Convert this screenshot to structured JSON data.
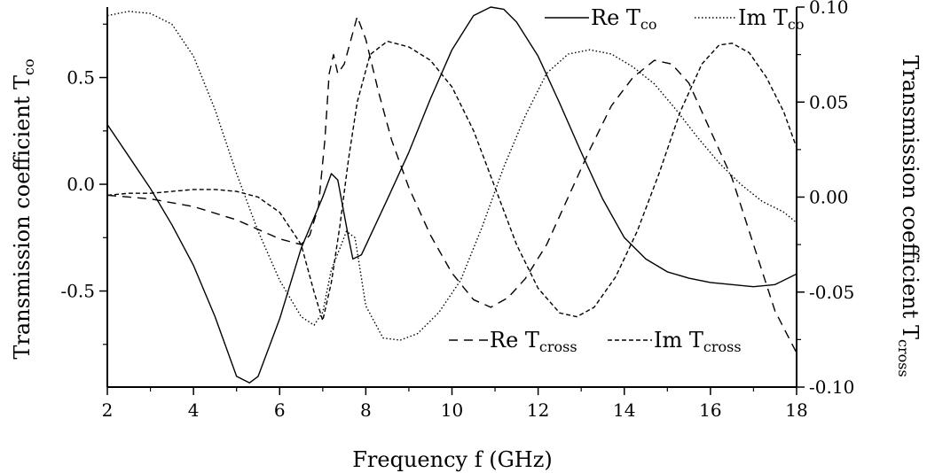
{
  "chart_data": {
    "type": "line",
    "xlabel": "Frequency f (GHz)",
    "ylabel_left_main": "Transmission coefficient T",
    "ylabel_left_sub": "co",
    "ylabel_right_main": "Transmission coefficient T",
    "ylabel_right_sub": "cross",
    "xlim": [
      2,
      18
    ],
    "ylim_left": [
      -0.95,
      0.83
    ],
    "ylim_right": [
      -0.1,
      0.1
    ],
    "x_ticks": [
      "2",
      "4",
      "6",
      "8",
      "10",
      "12",
      "14",
      "16",
      "18"
    ],
    "x_tick_values": [
      2,
      4,
      6,
      8,
      10,
      12,
      14,
      16,
      18
    ],
    "y_left_ticks": [
      "0.5",
      "0.0",
      "-0.5"
    ],
    "y_left_tick_values": [
      0.5,
      0.0,
      -0.5
    ],
    "y_right_ticks": [
      "0.10",
      "0.05",
      "0.00",
      "-0.05",
      "-0.10"
    ],
    "y_right_tick_values": [
      0.1,
      0.05,
      0.0,
      -0.05,
      -0.1
    ],
    "grid": false,
    "legend_top": [
      {
        "name_main": "Re T",
        "name_sub": "co",
        "style": "solid"
      },
      {
        "name_main": "Im T",
        "name_sub": "co",
        "style": "dotted"
      }
    ],
    "legend_bottom": [
      {
        "name_main": "Re T",
        "name_sub": "cross",
        "style": "dashed"
      },
      {
        "name_main": "Im T",
        "name_sub": "cross",
        "style": "shortdash"
      }
    ],
    "series": [
      {
        "name": "Re Tco",
        "axis": "left",
        "style": "solid",
        "points": [
          [
            2,
            0.28
          ],
          [
            2.5,
            0.13
          ],
          [
            3,
            -0.02
          ],
          [
            3.5,
            -0.19
          ],
          [
            4,
            -0.38
          ],
          [
            4.5,
            -0.62
          ],
          [
            5,
            -0.9
          ],
          [
            5.3,
            -0.93
          ],
          [
            5.5,
            -0.9
          ],
          [
            6,
            -0.63
          ],
          [
            6.5,
            -0.3
          ],
          [
            7,
            -0.06
          ],
          [
            7.2,
            0.05
          ],
          [
            7.35,
            0.02
          ],
          [
            7.6,
            -0.25
          ],
          [
            7.7,
            -0.35
          ],
          [
            7.9,
            -0.33
          ],
          [
            8.2,
            -0.2
          ],
          [
            8.5,
            -0.07
          ],
          [
            9,
            0.15
          ],
          [
            9.5,
            0.4
          ],
          [
            10,
            0.63
          ],
          [
            10.5,
            0.79
          ],
          [
            10.9,
            0.83
          ],
          [
            11.2,
            0.82
          ],
          [
            11.5,
            0.76
          ],
          [
            12,
            0.6
          ],
          [
            12.5,
            0.38
          ],
          [
            13,
            0.15
          ],
          [
            13.5,
            -0.07
          ],
          [
            14,
            -0.25
          ],
          [
            14.5,
            -0.35
          ],
          [
            15,
            -0.41
          ],
          [
            15.5,
            -0.44
          ],
          [
            16,
            -0.46
          ],
          [
            16.5,
            -0.47
          ],
          [
            17,
            -0.48
          ],
          [
            17.5,
            -0.47
          ],
          [
            18,
            -0.42
          ]
        ]
      },
      {
        "name": "Im Tco",
        "axis": "left",
        "style": "dotted",
        "points": [
          [
            2,
            0.79
          ],
          [
            2.5,
            0.81
          ],
          [
            3,
            0.8
          ],
          [
            3.5,
            0.75
          ],
          [
            4,
            0.6
          ],
          [
            4.5,
            0.35
          ],
          [
            5,
            0.05
          ],
          [
            5.5,
            -0.22
          ],
          [
            6,
            -0.45
          ],
          [
            6.5,
            -0.62
          ],
          [
            6.8,
            -0.66
          ],
          [
            7,
            -0.6
          ],
          [
            7.2,
            -0.4
          ],
          [
            7.4,
            -0.3
          ],
          [
            7.55,
            -0.22
          ],
          [
            7.75,
            -0.25
          ],
          [
            8,
            -0.57
          ],
          [
            8.4,
            -0.72
          ],
          [
            8.8,
            -0.73
          ],
          [
            9.2,
            -0.7
          ],
          [
            9.7,
            -0.6
          ],
          [
            10.2,
            -0.45
          ],
          [
            10.7,
            -0.2
          ],
          [
            11.2,
            0.08
          ],
          [
            11.7,
            0.32
          ],
          [
            12.2,
            0.52
          ],
          [
            12.7,
            0.61
          ],
          [
            13.2,
            0.63
          ],
          [
            13.7,
            0.61
          ],
          [
            14.2,
            0.55
          ],
          [
            14.7,
            0.47
          ],
          [
            15.2,
            0.35
          ],
          [
            15.7,
            0.22
          ],
          [
            16.2,
            0.1
          ],
          [
            16.7,
            0
          ],
          [
            17.2,
            -0.08
          ],
          [
            17.7,
            -0.13
          ],
          [
            18,
            -0.18
          ]
        ]
      },
      {
        "name": "Re Tcross",
        "axis": "right",
        "style": "dashed",
        "points": [
          [
            2,
            0.001
          ],
          [
            3,
            -0.001
          ],
          [
            4,
            -0.005
          ],
          [
            5,
            -0.012
          ],
          [
            5.5,
            -0.017
          ],
          [
            6,
            -0.022
          ],
          [
            6.5,
            -0.025
          ],
          [
            6.7,
            -0.02
          ],
          [
            6.9,
            -0.005
          ],
          [
            7.05,
            0.03
          ],
          [
            7.15,
            0.065
          ],
          [
            7.25,
            0.075
          ],
          [
            7.35,
            0.065
          ],
          [
            7.5,
            0.07
          ],
          [
            7.8,
            0.095
          ],
          [
            8,
            0.083
          ],
          [
            8.3,
            0.055
          ],
          [
            8.6,
            0.03
          ],
          [
            9,
            0.005
          ],
          [
            9.5,
            -0.02
          ],
          [
            10,
            -0.04
          ],
          [
            10.5,
            -0.054
          ],
          [
            10.9,
            -0.058
          ],
          [
            11.3,
            -0.053
          ],
          [
            11.7,
            -0.043
          ],
          [
            12.2,
            -0.025
          ],
          [
            12.7,
            0
          ],
          [
            13.2,
            0.025
          ],
          [
            13.7,
            0.048
          ],
          [
            14.2,
            0.063
          ],
          [
            14.7,
            0.072
          ],
          [
            15.1,
            0.07
          ],
          [
            15.5,
            0.06
          ],
          [
            16,
            0.035
          ],
          [
            16.5,
            0.01
          ],
          [
            17,
            -0.025
          ],
          [
            17.5,
            -0.06
          ],
          [
            18,
            -0.082
          ]
        ]
      },
      {
        "name": "Im Tcross",
        "axis": "right",
        "style": "shortdash",
        "points": [
          [
            2,
            0.001
          ],
          [
            2.5,
            0.002
          ],
          [
            3,
            0.002
          ],
          [
            3.5,
            0.003
          ],
          [
            4,
            0.004
          ],
          [
            4.5,
            0.004
          ],
          [
            5,
            0.003
          ],
          [
            5.5,
            0
          ],
          [
            6,
            -0.008
          ],
          [
            6.5,
            -0.025
          ],
          [
            6.8,
            -0.05
          ],
          [
            7.0,
            -0.065
          ],
          [
            7.2,
            -0.045
          ],
          [
            7.4,
            -0.015
          ],
          [
            7.6,
            0.02
          ],
          [
            7.8,
            0.05
          ],
          [
            8.1,
            0.075
          ],
          [
            8.5,
            0.082
          ],
          [
            9,
            0.079
          ],
          [
            9.5,
            0.072
          ],
          [
            10,
            0.058
          ],
          [
            10.5,
            0.035
          ],
          [
            11,
            0.005
          ],
          [
            11.5,
            -0.025
          ],
          [
            12,
            -0.048
          ],
          [
            12.5,
            -0.061
          ],
          [
            12.9,
            -0.063
          ],
          [
            13.3,
            -0.058
          ],
          [
            13.8,
            -0.042
          ],
          [
            14.3,
            -0.018
          ],
          [
            14.8,
            0.012
          ],
          [
            15.3,
            0.045
          ],
          [
            15.8,
            0.07
          ],
          [
            16.2,
            0.08
          ],
          [
            16.5,
            0.081
          ],
          [
            16.9,
            0.076
          ],
          [
            17.3,
            0.063
          ],
          [
            17.7,
            0.045
          ],
          [
            18,
            0.026
          ]
        ]
      }
    ]
  }
}
